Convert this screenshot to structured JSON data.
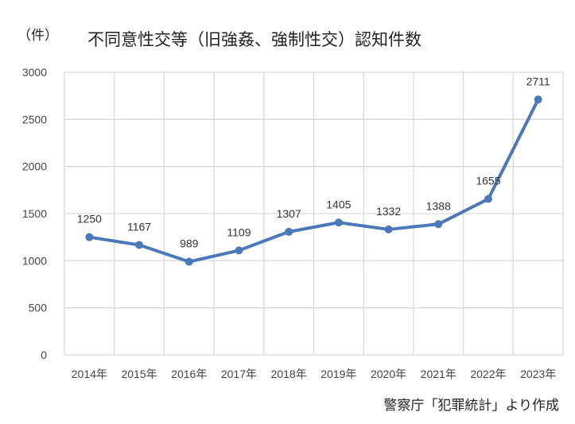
{
  "chart_data": {
    "type": "line",
    "title": "不同意性交等（旧強姦、強制性交）認知件数",
    "ylabel": "（件）",
    "categories": [
      "2014年",
      "2015年",
      "2016年",
      "2017年",
      "2018年",
      "2019年",
      "2020年",
      "2021年",
      "2022年",
      "2023年"
    ],
    "values": [
      1250,
      1167,
      989,
      1109,
      1307,
      1405,
      1332,
      1388,
      1655,
      2711
    ],
    "ylim": [
      0,
      3000
    ],
    "yticks": [
      0,
      500,
      1000,
      1500,
      2000,
      2500,
      3000
    ],
    "grid": true,
    "legend": "none",
    "line_color": "#4a78b8",
    "source": "警察庁「犯罪統計」より作成"
  }
}
